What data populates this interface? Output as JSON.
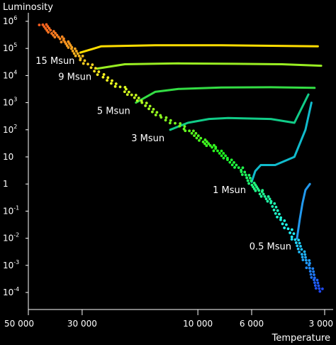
{
  "chart_data": {
    "type": "scatter",
    "title": "",
    "ylabel": "Luminosity",
    "xlabel": "Temperature",
    "x_scale": "log-reversed",
    "y_scale": "log",
    "xlim": [
      50000,
      3000
    ],
    "ylim": [
      0.0001,
      1000000
    ],
    "x_ticks": [
      {
        "value": 50000,
        "label": "50 000"
      },
      {
        "value": 30000,
        "label": "30 000"
      },
      {
        "value": 10000,
        "label": "10 000"
      },
      {
        "value": 6000,
        "label": "6 000"
      },
      {
        "value": 3000,
        "label": "3 000"
      }
    ],
    "y_ticks": [
      {
        "value": 1000000,
        "base": "10",
        "exp": "6"
      },
      {
        "value": 100000,
        "base": "10",
        "exp": "5"
      },
      {
        "value": 10000,
        "base": "10",
        "exp": "4"
      },
      {
        "value": 1000,
        "base": "10",
        "exp": "3"
      },
      {
        "value": 100,
        "base": "10",
        "exp": "2"
      },
      {
        "value": 10,
        "base": "10",
        "exp": ""
      },
      {
        "value": 1,
        "base": "1",
        "exp": ""
      },
      {
        "value": 0.1,
        "base": "10",
        "exp": "-1"
      },
      {
        "value": 0.01,
        "base": "10",
        "exp": "-2"
      },
      {
        "value": 0.001,
        "base": "10",
        "exp": "-3"
      },
      {
        "value": 0.0001,
        "base": "10",
        "exp": "-4"
      }
    ],
    "main_sequence": [
      [
        44000,
        800000
      ],
      [
        40000,
        400000
      ],
      [
        36000,
        200000
      ],
      [
        33000,
        100000
      ],
      [
        30000,
        40000
      ],
      [
        25000,
        10000
      ],
      [
        20000,
        3000
      ],
      [
        17000,
        1000
      ],
      [
        14000,
        300
      ],
      [
        11000,
        100
      ],
      [
        9500,
        40
      ],
      [
        8500,
        20
      ],
      [
        7500,
        8
      ],
      [
        6500,
        3
      ],
      [
        6000,
        1
      ],
      [
        5500,
        0.5
      ],
      [
        5000,
        0.2
      ],
      [
        4500,
        0.05
      ],
      [
        4000,
        0.01
      ],
      [
        3700,
        0.003
      ],
      [
        3500,
        0.001
      ],
      [
        3300,
        0.0003
      ],
      [
        3100,
        0.0001
      ]
    ],
    "series": [
      {
        "name": "15 Msun",
        "color": "#ffdd00",
        "points": [
          [
            30500,
            70000
          ],
          [
            25000,
            120000
          ],
          [
            15000,
            130000
          ],
          [
            8000,
            130000
          ],
          [
            5000,
            125000
          ],
          [
            3200,
            120000
          ]
        ]
      },
      {
        "name": "9 Msun",
        "color": "#99ee22",
        "points": [
          [
            26000,
            18000
          ],
          [
            20000,
            26000
          ],
          [
            12000,
            28000
          ],
          [
            7000,
            27000
          ],
          [
            4500,
            26000
          ],
          [
            3100,
            23000
          ]
        ]
      },
      {
        "name": "5 Msun",
        "color": "#33dd44",
        "points": [
          [
            18000,
            1000
          ],
          [
            15000,
            2500
          ],
          [
            12000,
            3200
          ],
          [
            8000,
            3600
          ],
          [
            5000,
            3700
          ],
          [
            3300,
            3500
          ]
        ]
      },
      {
        "name": "3 Msun",
        "color": "#11cc88",
        "points": [
          [
            13000,
            100
          ],
          [
            11000,
            180
          ],
          [
            9000,
            250
          ],
          [
            7500,
            270
          ],
          [
            5000,
            250
          ],
          [
            4000,
            180
          ],
          [
            3500,
            2000
          ]
        ]
      },
      {
        "name": "1 Msun",
        "color": "#11bbcc",
        "points": [
          [
            6000,
            1.2
          ],
          [
            5800,
            3
          ],
          [
            5500,
            5
          ],
          [
            4800,
            5
          ],
          [
            4000,
            10
          ],
          [
            3600,
            100
          ],
          [
            3400,
            1000
          ]
        ]
      },
      {
        "name": "0.5 Msun",
        "color": "#2299ee",
        "points": [
          [
            3900,
            0.01
          ],
          [
            3800,
            0.05
          ],
          [
            3700,
            0.2
          ],
          [
            3600,
            0.6
          ],
          [
            3450,
            1
          ]
        ]
      }
    ]
  }
}
